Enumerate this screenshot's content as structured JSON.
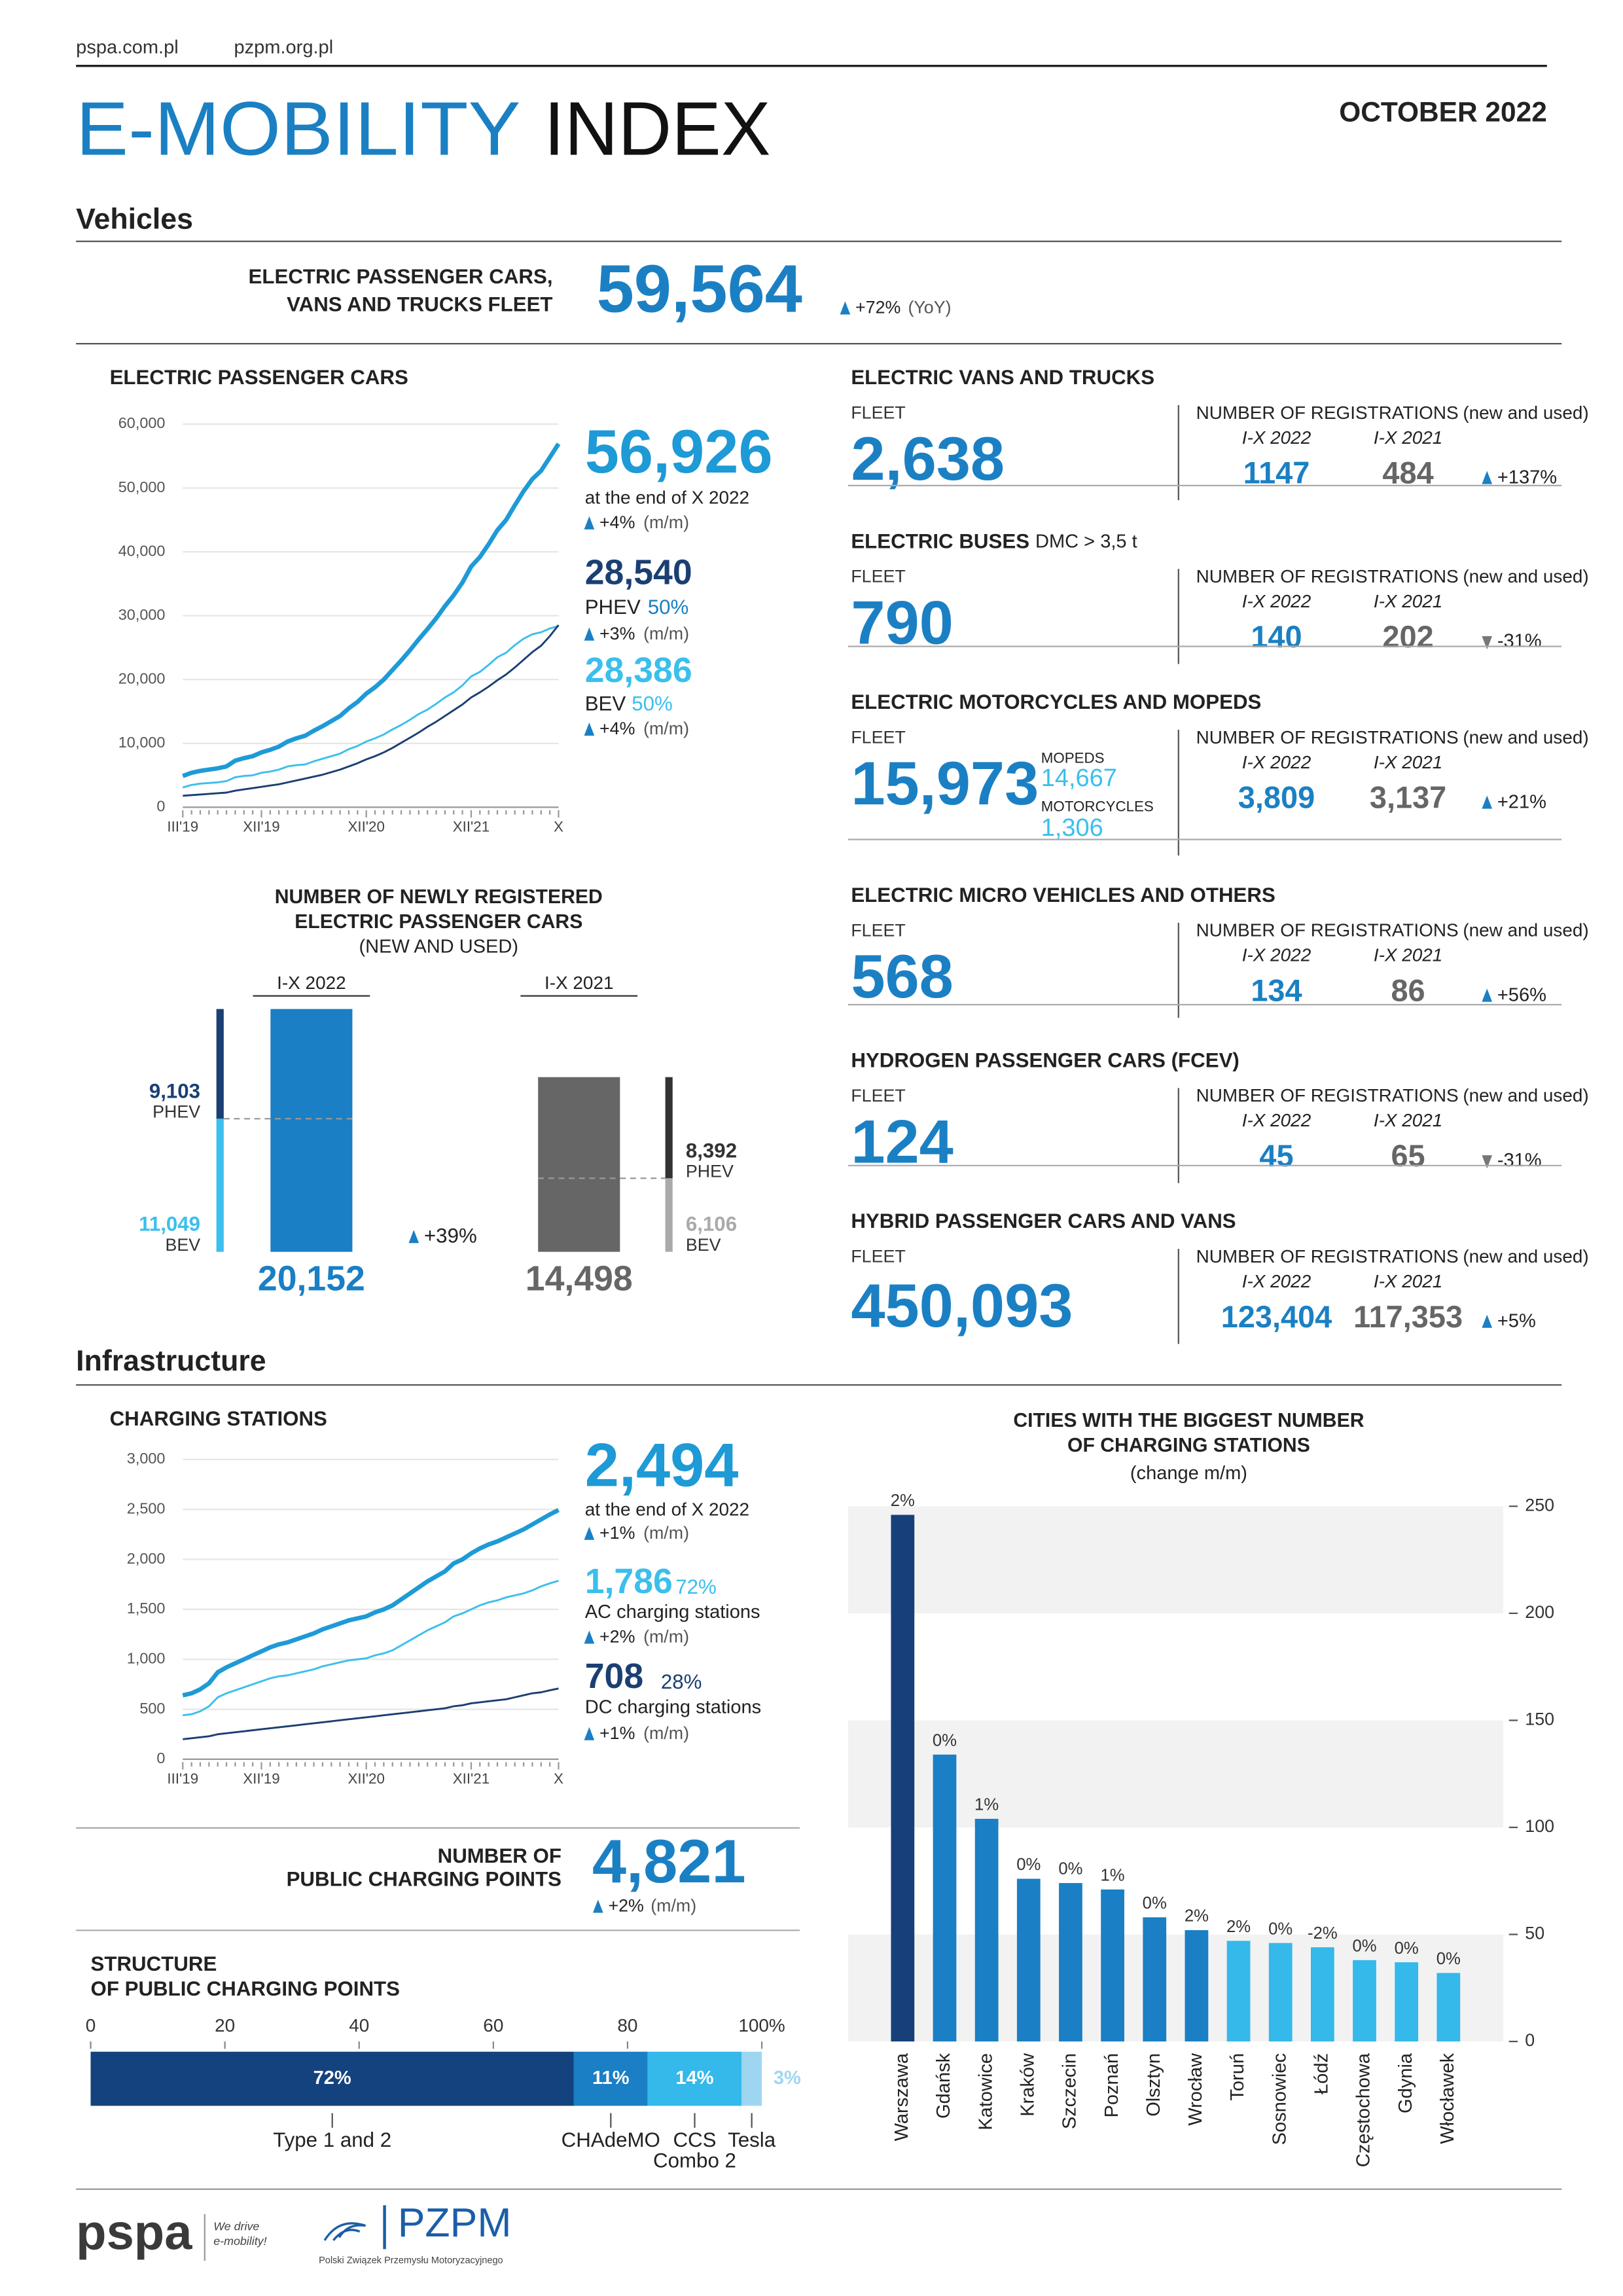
{
  "header": {
    "links": [
      "pspa.com.pl",
      "pzpm.org.pl"
    ],
    "title": [
      "E-MOBILITY",
      "INDEX"
    ],
    "date": "OCTOBER 2022"
  },
  "vehicles": {
    "heading": "Vehicles",
    "fleet_label": [
      "ELECTRIC PASSENGER CARS,",
      "VANS AND TRUCKS FLEET"
    ],
    "fleet": "59,564",
    "change": "+72%",
    "change_note": "(YoY)",
    "direction": "up"
  },
  "passenger_cars": {
    "title": "ELECTRIC PASSENGER CARS",
    "total": "56,926",
    "total_note": "at the end of X 2022",
    "total_change": "+4%",
    "period": "(m/m)",
    "phev": "28,540",
    "phev_label": "PHEV",
    "phev_share": "50%",
    "phev_change": "+3%",
    "bev": "28,386",
    "bev_label": "BEV",
    "bev_share": "50%",
    "bev_change": "+4%"
  },
  "segments": [
    {
      "title": "ELECTRIC VANS AND TRUCKS",
      "fleet_label": "FLEET",
      "fleet": "2,638",
      "registrations_label": "NUMBER OF REGISTRATIONS",
      "registrations_note": "(new and used)",
      "periods": [
        "I-X 2022",
        "I-X 2021"
      ],
      "registrations": [
        "1147",
        "484"
      ],
      "change": "+137%",
      "direction": "up"
    },
    {
      "title": "ELECTRIC BUSES",
      "title_note": "DMC > 3,5 t",
      "fleet_label": "FLEET",
      "fleet": "790",
      "registrations_label": "NUMBER OF REGISTRATIONS",
      "registrations_note": "(new and used)",
      "periods": [
        "I-X 2022",
        "I-X 2021"
      ],
      "registrations": [
        "140",
        "202"
      ],
      "change": "-31%",
      "direction": "down"
    },
    {
      "title": "ELECTRIC MOTORCYCLES AND MOPEDS",
      "fleet_label": "FLEET",
      "fleet": "15,973",
      "breakdown": [
        {
          "label": "MOPEDS",
          "value": "14,667"
        },
        {
          "label": "MOTORCYCLES",
          "value": "1,306"
        }
      ],
      "registrations_label": "NUMBER OF REGISTRATIONS",
      "registrations_note": "(new and used)",
      "periods": [
        "I-X 2022",
        "I-X 2021"
      ],
      "registrations": [
        "3,809",
        "3,137"
      ],
      "change": "+21%",
      "direction": "up"
    },
    {
      "title": "ELECTRIC MICRO VEHICLES AND OTHERS",
      "fleet_label": "FLEET",
      "fleet": "568",
      "registrations_label": "NUMBER OF REGISTRATIONS",
      "registrations_note": "(new and used)",
      "periods": [
        "I-X 2022",
        "I-X 2021"
      ],
      "registrations": [
        "134",
        "86"
      ],
      "change": "+56%",
      "direction": "up"
    },
    {
      "title": "HYDROGEN PASSENGER CARS (FCEV)",
      "fleet_label": "FLEET",
      "fleet": "124",
      "registrations_label": "NUMBER OF REGISTRATIONS",
      "registrations_note": "(new and used)",
      "periods": [
        "I-X 2022",
        "I-X 2021"
      ],
      "registrations": [
        "45",
        "65"
      ],
      "change": "-31%",
      "direction": "down"
    },
    {
      "title": "HYBRID PASSENGER CARS AND VANS",
      "fleet_label": "FLEET",
      "fleet": "450,093",
      "registrations_label": "NUMBER OF REGISTRATIONS",
      "registrations_note": "(new and used)",
      "periods": [
        "I-X 2022",
        "I-X 2021"
      ],
      "registrations": [
        "123,404",
        "117,353"
      ],
      "change": "+5%",
      "direction": "up"
    }
  ],
  "infrastructure": {
    "heading": "Infrastructure",
    "charging_stations": {
      "title": "CHARGING STATIONS",
      "total": "2,494",
      "total_note": "at the end of X 2022",
      "total_change": "+1%",
      "period": "(m/m)",
      "ac": "1,786",
      "ac_share": "72%",
      "ac_label": "AC charging stations",
      "ac_change": "+2%",
      "dc": "708",
      "dc_share": "28%",
      "dc_label": "DC charging stations",
      "dc_change": "+1%"
    },
    "public_points": {
      "label": [
        "NUMBER OF",
        "PUBLIC CHARGING POINTS"
      ],
      "value": "4,821",
      "change": "+2%",
      "period": "(m/m)"
    }
  },
  "footer": {
    "pspa": "pspa",
    "slogan": [
      "We drive",
      "e-mobility!"
    ],
    "pzpm": "PZPM",
    "pzpm_name": "Polski Związek Przemysłu Motoryzacyjnego"
  },
  "chart_data": [
    {
      "type": "line",
      "grid": true,
      "ylim": [
        0,
        60000
      ],
      "yticks": [
        0,
        {
          "value": 10000,
          "label": "10,000"
        },
        {
          "value": 20000,
          "label": "20,000"
        },
        {
          "value": 30000,
          "label": "30,000"
        },
        {
          "value": 40000,
          "label": "40,000"
        },
        {
          "value": 50000,
          "label": "50,000"
        },
        {
          "value": 60000,
          "label": "60,000"
        }
      ],
      "categories": [
        "III'19",
        null,
        null,
        null,
        null,
        null,
        null,
        null,
        null,
        "XII'19",
        null,
        null,
        null,
        null,
        null,
        null,
        null,
        null,
        null,
        null,
        null,
        "XII'20",
        null,
        null,
        null,
        null,
        null,
        null,
        null,
        null,
        null,
        null,
        null,
        "XII'21",
        null,
        null,
        null,
        null,
        null,
        null,
        null,
        null,
        null,
        "X"
      ],
      "series": [
        {
          "color": "#3bbfec",
          "line_width": 1.3,
          "values": [
            3100,
            3500,
            3700,
            3800,
            3900,
            4100,
            4700,
            4900,
            5000,
            5400,
            5600,
            5900,
            6400,
            6600,
            6700,
            7200,
            7600,
            8000,
            8400,
            9100,
            9600,
            10300,
            10800,
            11400,
            12200,
            12900,
            13700,
            14600,
            15300,
            16200,
            17200,
            18000,
            19100,
            20500,
            21200,
            22300,
            23500,
            24200,
            25400,
            26400,
            27100,
            27400,
            28000,
            28386
          ]
        },
        {
          "color": "#1b3f73",
          "line_width": 1.3,
          "values": [
            1800,
            1900,
            2000,
            2100,
            2200,
            2300,
            2600,
            2800,
            3000,
            3200,
            3400,
            3600,
            3900,
            4200,
            4500,
            4800,
            5100,
            5500,
            5900,
            6400,
            6900,
            7500,
            8000,
            8600,
            9300,
            10100,
            10900,
            11700,
            12600,
            13400,
            14300,
            15200,
            16100,
            17200,
            18000,
            18900,
            19900,
            20800,
            21900,
            23100,
            24300,
            25300,
            26800,
            28540
          ]
        },
        {
          "color": "#1e9ad6",
          "line_width": 3,
          "values": [
            4900,
            5400,
            5700,
            5900,
            6100,
            6400,
            7300,
            7700,
            8000,
            8600,
            9000,
            9500,
            10300,
            10800,
            11200,
            12000,
            12700,
            13500,
            14300,
            15500,
            16500,
            17800,
            18800,
            20000,
            21500,
            23000,
            24600,
            26300,
            27900,
            29600,
            31500,
            33200,
            35200,
            37700,
            39200,
            41200,
            43400,
            45000,
            47300,
            49500,
            51400,
            52700,
            54800,
            56926
          ]
        }
      ]
    },
    {
      "type": "line",
      "grid": true,
      "ylim": [
        0,
        3000
      ],
      "yticks": [
        0,
        500,
        {
          "value": 1000,
          "label": "1,000"
        },
        {
          "value": 1500,
          "label": "1,500"
        },
        {
          "value": 2000,
          "label": "2,000"
        },
        {
          "value": 2500,
          "label": "2,500"
        },
        {
          "value": 3000,
          "label": "3,000"
        }
      ],
      "categories": [
        "III'19",
        null,
        null,
        null,
        null,
        null,
        null,
        null,
        null,
        "XII'19",
        null,
        null,
        null,
        null,
        null,
        null,
        null,
        null,
        null,
        null,
        null,
        "XII'20",
        null,
        null,
        null,
        null,
        null,
        null,
        null,
        null,
        null,
        null,
        null,
        "XII'21",
        null,
        null,
        null,
        null,
        null,
        null,
        null,
        null,
        null,
        "X"
      ],
      "series": [
        {
          "color": "#1b3f73",
          "line_width": 1.3,
          "values": [
            200,
            210,
            220,
            230,
            250,
            260,
            270,
            280,
            290,
            300,
            310,
            320,
            330,
            340,
            350,
            360,
            370,
            380,
            390,
            400,
            410,
            420,
            430,
            440,
            450,
            460,
            470,
            480,
            490,
            500,
            510,
            530,
            540,
            560,
            570,
            580,
            590,
            600,
            620,
            640,
            660,
            670,
            690,
            708
          ]
        },
        {
          "color": "#3bbfec",
          "line_width": 1.3,
          "values": [
            440,
            450,
            480,
            530,
            620,
            660,
            690,
            720,
            750,
            780,
            810,
            830,
            840,
            860,
            880,
            900,
            930,
            950,
            970,
            990,
            1000,
            1010,
            1040,
            1060,
            1090,
            1140,
            1190,
            1240,
            1290,
            1330,
            1370,
            1430,
            1460,
            1500,
            1540,
            1570,
            1590,
            1620,
            1640,
            1660,
            1690,
            1730,
            1760,
            1786
          ]
        },
        {
          "color": "#1e9ad6",
          "line_width": 3,
          "values": [
            640,
            660,
            700,
            760,
            870,
            920,
            960,
            1000,
            1040,
            1080,
            1120,
            1150,
            1170,
            1200,
            1230,
            1260,
            1300,
            1330,
            1360,
            1390,
            1410,
            1430,
            1470,
            1500,
            1540,
            1600,
            1660,
            1720,
            1780,
            1830,
            1880,
            1960,
            2000,
            2060,
            2110,
            2150,
            2180,
            2220,
            2260,
            2300,
            2350,
            2400,
            2450,
            2494
          ]
        }
      ]
    },
    {
      "type": "registrations",
      "title": [
        "NUMBER OF NEWLY REGISTERED",
        "ELECTRIC PASSENGER CARS"
      ],
      "subtitle": "(NEW AND USED)",
      "categories": [
        "I-X 2022",
        "I-X 2021"
      ],
      "values": [
        20152,
        14498
      ],
      "value_labels": [
        "20,152",
        "14,498"
      ],
      "colors": [
        "#1a7fc4",
        "#666666"
      ],
      "series": [
        {
          "name": "PHEV",
          "values": [
            9103,
            8392
          ],
          "value_labels": [
            "9,103",
            "8,392"
          ],
          "colors": [
            "#1b3f73",
            "#333333"
          ]
        },
        {
          "name": "BEV",
          "values": [
            11049,
            6106
          ],
          "value_labels": [
            "11,049",
            "6,106"
          ],
          "colors": [
            "#3bbfec",
            "#aaaaaa"
          ]
        }
      ],
      "change": "+39%",
      "direction": "up"
    },
    {
      "type": "bar",
      "title": [
        "CITIES WITH THE BIGGEST NUMBER",
        "OF CHARGING STATIONS"
      ],
      "subtitle": "(change m/m)",
      "bands": true,
      "y_axis_side": "right",
      "categories": [
        "Warszawa",
        "Gdańsk",
        "Katowice",
        "Kraków",
        "Szczecin",
        "Poznań",
        "Olsztyn",
        "Wrocław",
        "Toruń",
        "Sosnowiec",
        "Łódź",
        "Częstochowa",
        "Gdynia",
        "Włocławek"
      ],
      "values": [
        246,
        134,
        104,
        76,
        74,
        71,
        58,
        52,
        47,
        46,
        44,
        38,
        37,
        32
      ],
      "annotations": [
        "2%",
        "0%",
        "1%",
        "0%",
        "0%",
        "1%",
        "0%",
        "2%",
        "2%",
        "0%",
        "-2%",
        "0%",
        "0%",
        "0%"
      ],
      "colors": [
        "#17407a",
        "#1a7fc4",
        "#1a7fc4",
        "#1a7fc4",
        "#1a7fc4",
        "#1a7fc4",
        "#1a7fc4",
        "#1a7fc4",
        "#35b8ea",
        "#35b8ea",
        "#35b8ea",
        "#35b8ea",
        "#35b8ea",
        "#35b8ea"
      ],
      "ylim": [
        0,
        250
      ],
      "yticks": [
        0,
        50,
        100,
        150,
        200,
        250
      ]
    },
    {
      "type": "stacked",
      "orientation": "horizontal",
      "title": [
        "STRUCTURE",
        "OF PUBLIC CHARGING POINTS"
      ],
      "xlim": [
        0,
        100
      ],
      "xticks": [
        0,
        20,
        40,
        60,
        80,
        {
          "value": 100,
          "label": "100%"
        }
      ],
      "series": [
        {
          "name": "Type 1 and 2",
          "color": "#14427e",
          "values": [
            72
          ],
          "value_labels": [
            "72%"
          ]
        },
        {
          "name": "CHAdeMO",
          "color": "#1a7fc4",
          "values": [
            11
          ],
          "value_labels": [
            "11%"
          ]
        },
        {
          "name": "CCS Combo 2",
          "color": "#35b8ea",
          "values": [
            14
          ],
          "value_labels": [
            "14%"
          ]
        },
        {
          "name": "Tesla",
          "color": "#9ed6f2",
          "values": [
            3
          ],
          "value_labels": [
            "3%"
          ]
        }
      ]
    }
  ]
}
